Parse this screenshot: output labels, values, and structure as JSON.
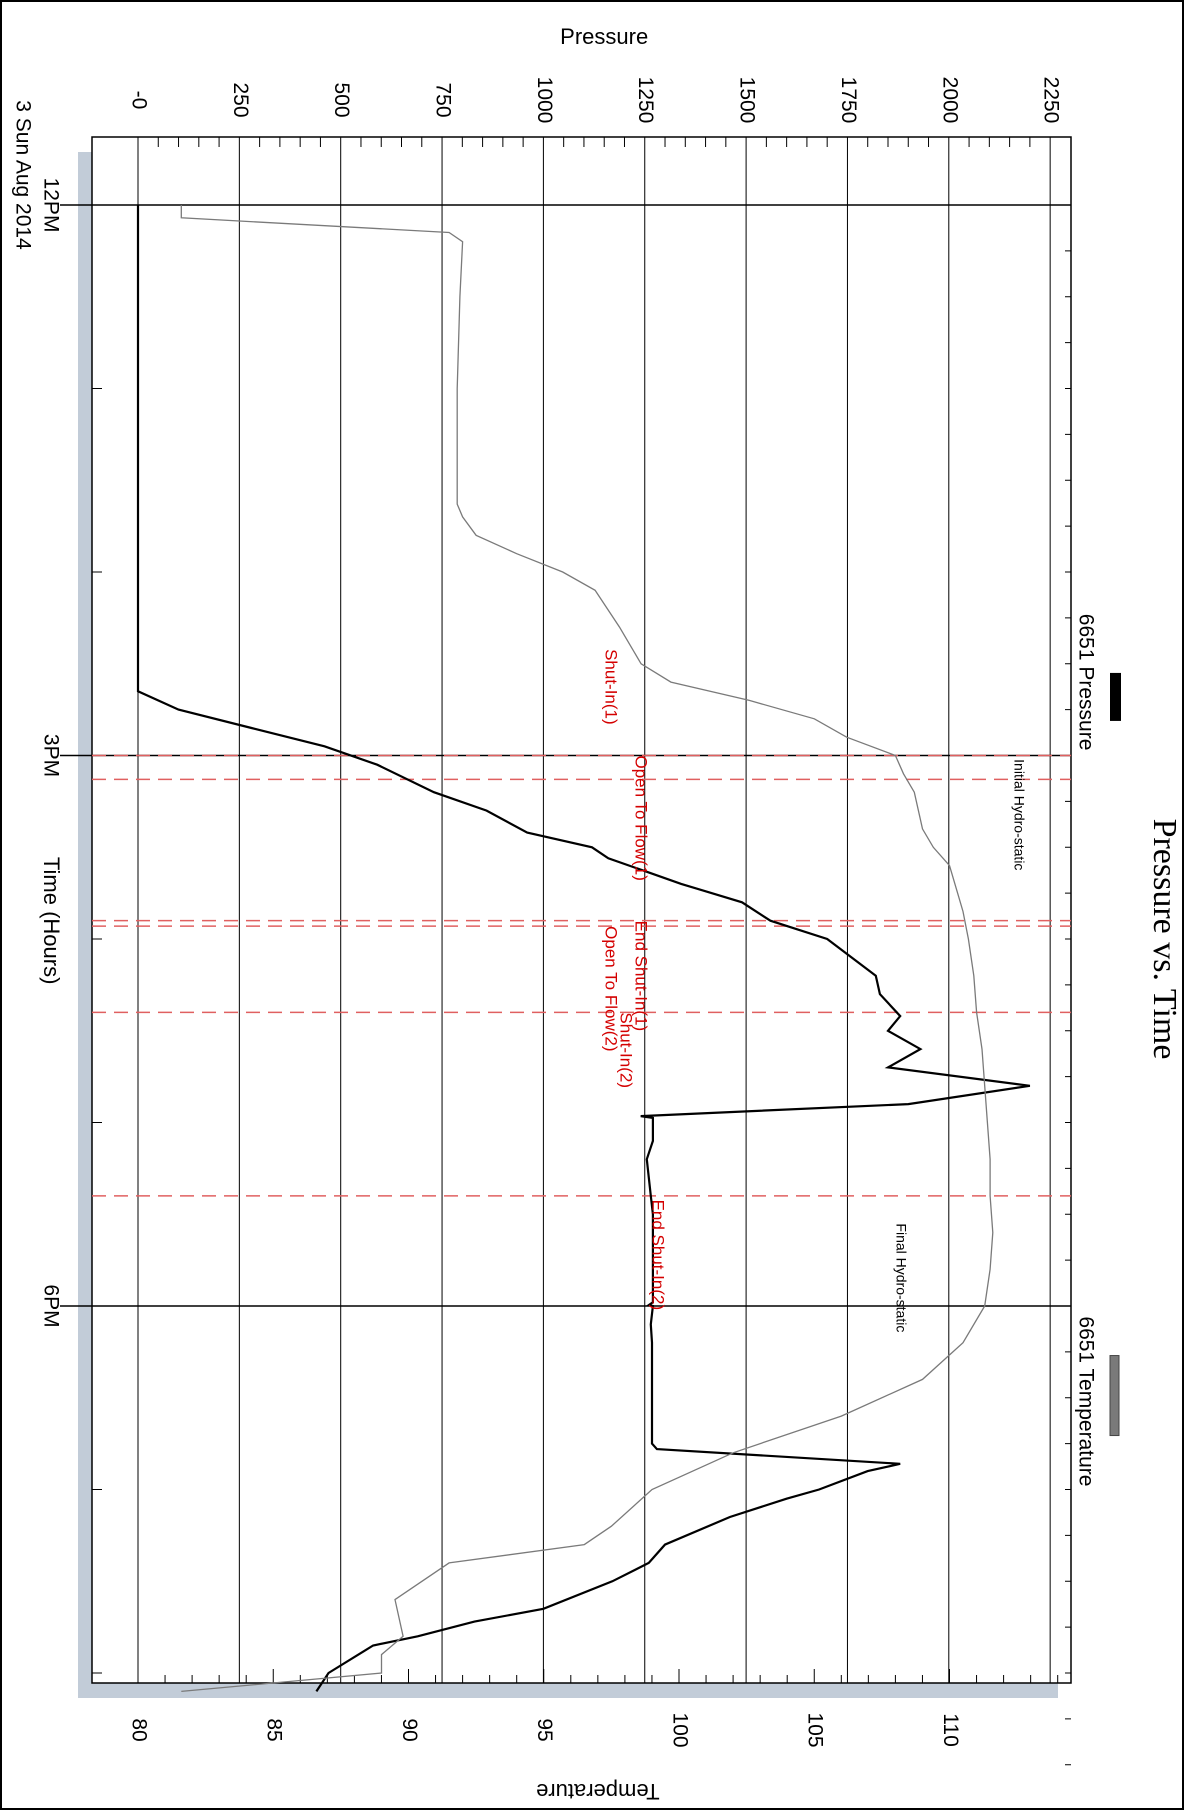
{
  "chart_data": {
    "type": "line",
    "title": "Pressure vs. Time",
    "xlabel": "Time (Hours)",
    "x_tick_labels": [
      "12PM",
      "3PM",
      "6PM"
    ],
    "date_label": "3 Sun Aug 2014",
    "y_axis": {
      "label": "Pressure",
      "ticks": [
        0,
        250,
        500,
        750,
        1000,
        1250,
        1500,
        1750,
        2000,
        2250
      ],
      "tick_labels": [
        "-0",
        "250",
        "500",
        "750",
        "1000",
        "1250",
        "1500",
        "1750",
        "2000",
        "2250"
      ],
      "range": [
        0,
        2300
      ]
    },
    "y2_axis": {
      "label": "Temperature",
      "ticks": [
        80,
        85,
        90,
        95,
        100,
        105,
        110
      ],
      "tick_labels": [
        "80",
        "85",
        "90",
        "95",
        "100",
        "105",
        "110"
      ],
      "range": [
        80,
        114.4
      ]
    },
    "x_range_hours": [
      12,
      20.5
    ],
    "grid": true,
    "legend": [
      {
        "name": "6651 Pressure",
        "color": "#000000"
      },
      {
        "name": "6651 Temperature",
        "color": "#7a7a7a"
      }
    ],
    "series": [
      {
        "name": "6651 Pressure",
        "axis": "pressure",
        "color": "#000000",
        "x": [
          12.0,
          14.65,
          14.75,
          14.85,
          14.95,
          15.05,
          15.2,
          15.3,
          15.42,
          15.5,
          15.56,
          15.63,
          15.7,
          15.8,
          15.9,
          16.0,
          16.1,
          16.2,
          16.3,
          16.42,
          16.5,
          16.6,
          16.7,
          16.8,
          16.9,
          16.965,
          16.975,
          16.985,
          17.0,
          17.1,
          17.2,
          17.3,
          17.4,
          17.5,
          17.6,
          17.75,
          17.9,
          17.98,
          17.995,
          18.0,
          18.1,
          18.2,
          18.4,
          18.6,
          18.75,
          18.78,
          18.86,
          18.9,
          19.0,
          19.05,
          19.15,
          19.3,
          19.4,
          19.5,
          19.65,
          19.72,
          19.8,
          19.85,
          20.0,
          20.1
        ],
        "y": [
          0,
          0,
          100,
          280,
          460,
          590,
          730,
          860,
          960,
          1120,
          1160,
          1250,
          1340,
          1490,
          1560,
          1700,
          1760,
          1820,
          1830,
          1880,
          1850,
          1930,
          1850,
          2200,
          1900,
          1240,
          1270,
          1270,
          1270,
          1270,
          1255,
          1260,
          1265,
          1270,
          1270,
          1270,
          1270,
          1270,
          1260,
          1270,
          1265,
          1268,
          1268,
          1268,
          1268,
          1280,
          1880,
          1800,
          1680,
          1600,
          1460,
          1300,
          1260,
          1170,
          1000,
          830,
          690,
          580,
          470,
          440
        ]
      },
      {
        "name": "6651 Temperature",
        "axis": "temperature",
        "color": "#7a7a7a",
        "x": [
          12.0,
          12.07,
          12.15,
          12.2,
          12.5,
          13.0,
          13.3,
          13.5,
          13.63,
          13.7,
          13.8,
          13.9,
          14.0,
          14.1,
          14.3,
          14.5,
          14.6,
          14.7,
          14.8,
          14.9,
          15.0,
          15.1,
          15.2,
          15.4,
          15.5,
          15.6,
          15.75,
          15.85,
          16.0,
          16.2,
          16.4,
          16.6,
          16.8,
          17.0,
          17.2,
          17.4,
          17.6,
          17.8,
          18.0,
          18.2,
          18.4,
          18.6,
          18.8,
          19.0,
          19.2,
          19.3,
          19.4,
          19.6,
          19.8,
          19.9,
          20.0,
          20.1
        ],
        "y": [
          81.6,
          81.6,
          91.5,
          92.0,
          91.9,
          91.8,
          91.8,
          91.8,
          91.8,
          92.0,
          92.5,
          94.0,
          95.7,
          96.9,
          97.8,
          98.6,
          99.7,
          102.6,
          105.0,
          106.2,
          108.0,
          108.3,
          108.7,
          109.0,
          109.4,
          110.0,
          110.3,
          110.5,
          110.7,
          110.9,
          111.0,
          111.2,
          111.3,
          111.4,
          111.5,
          111.5,
          111.6,
          111.5,
          111.3,
          110.5,
          109.0,
          106.0,
          102.0,
          99.0,
          97.5,
          96.5,
          91.5,
          89.5,
          89.8,
          89.0,
          89.0,
          81.6
        ]
      }
    ],
    "events": [
      {
        "label": "Initial Hydro-static",
        "x": 14.98,
        "series": "pressure",
        "color": "#000000"
      },
      {
        "label": "Shut-In(1)",
        "x": 15.0,
        "color": "#d40000"
      },
      {
        "label": "Open To Flow(1)",
        "x": 15.13,
        "color": "#d40000"
      },
      {
        "label": "End Shut-In(1)",
        "x": 15.9,
        "color": "#d40000"
      },
      {
        "label": "Open To Flow(2)",
        "x": 15.93,
        "color": "#d40000"
      },
      {
        "label": "Shut-In(2)",
        "x": 16.4,
        "color": "#d40000"
      },
      {
        "label": "End Shut-In(2)",
        "x": 17.4,
        "color": "#d40000"
      },
      {
        "label": "Final Hydro-static",
        "x": 17.45,
        "series": "pressure",
        "color": "#000000"
      }
    ]
  }
}
